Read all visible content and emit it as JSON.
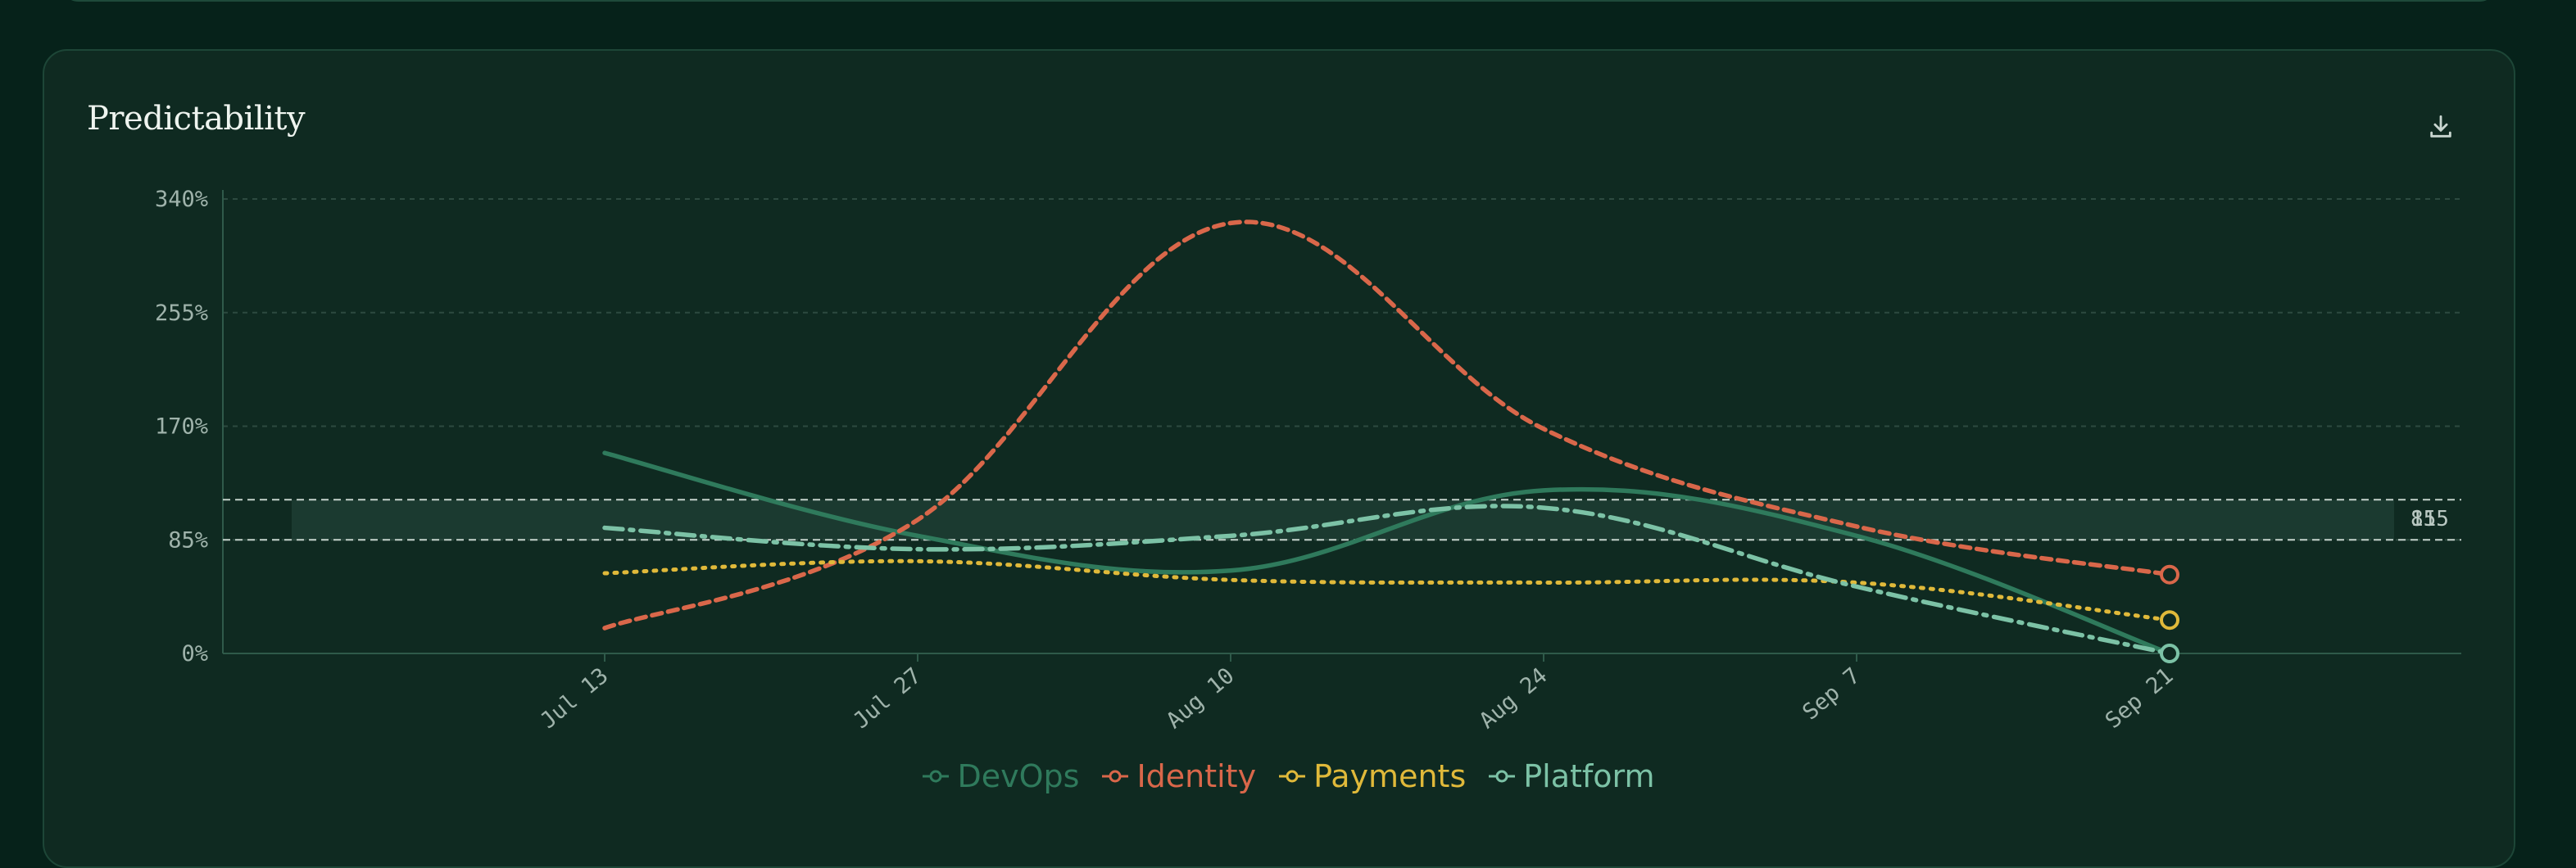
{
  "card": {
    "title": "Predictability"
  },
  "toolbar": {
    "download_icon": "download-icon"
  },
  "colors": {
    "background": "#06221a",
    "card": "#0f2a21",
    "grid": "#2d4a40",
    "axis": "#2f5a4a",
    "reference_line": "#c5d3cc",
    "band": "#1d3d32"
  },
  "chart_data": {
    "type": "line",
    "title": "Predictability",
    "xlabel": "",
    "ylabel": "",
    "x": [
      "Jul 13",
      "Jul 27",
      "Aug 10",
      "Aug 24",
      "Sep 7",
      "Sep 21"
    ],
    "ylim": [
      0,
      340
    ],
    "yticks": [
      "0%",
      "85%",
      "170%",
      "255%",
      "340%"
    ],
    "yticks_values": [
      0,
      85,
      170,
      255,
      340
    ],
    "grid": true,
    "legend_position": "bottom-center",
    "reference_lines": [
      {
        "value": 85,
        "label": "85"
      },
      {
        "value": 115,
        "label": "115"
      }
    ],
    "reference_band": [
      85,
      115
    ],
    "series": [
      {
        "name": "DevOps",
        "color": "#2f7a5c",
        "style": "solid",
        "values": [
          150,
          88,
          62,
          122,
          88,
          0
        ]
      },
      {
        "name": "Identity",
        "color": "#d9674a",
        "style": "dashed",
        "values": [
          19,
          100,
          322,
          168,
          95,
          59
        ]
      },
      {
        "name": "Payments",
        "color": "#e0b93a",
        "style": "dotted",
        "values": [
          60,
          69,
          55,
          53,
          53,
          25
        ]
      },
      {
        "name": "Platform",
        "color": "#7cc2a6",
        "style": "dash-dot",
        "values": [
          94,
          78,
          88,
          109,
          50,
          0
        ]
      }
    ]
  }
}
